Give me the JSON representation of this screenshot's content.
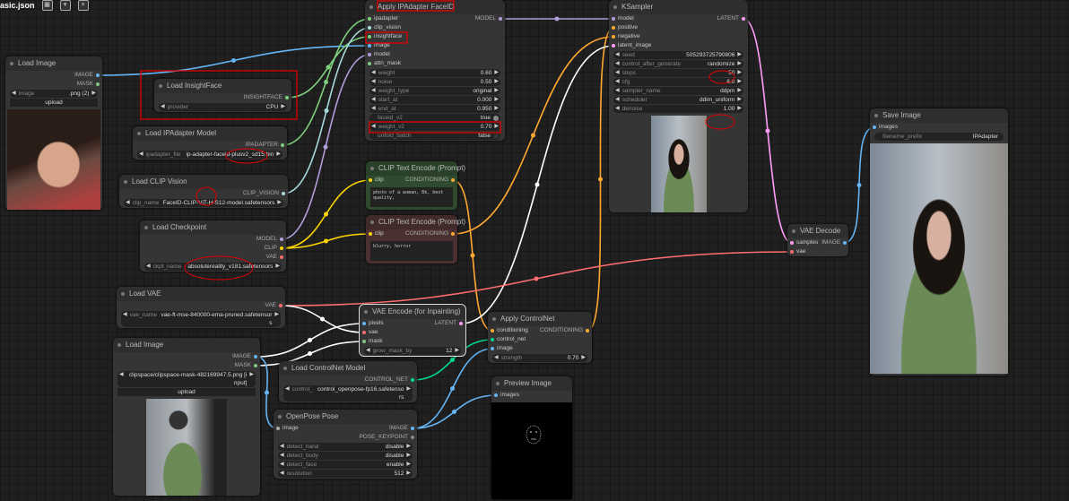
{
  "workflow_tab": {
    "title": "asic.json",
    "icons": [
      "save-icon",
      "chevron-down-icon",
      "close-icon"
    ]
  },
  "colors": {
    "IMAGE": "#64b5f6",
    "MASK": "#81c784",
    "MODEL": "#b39ddb",
    "CLIP": "#ffd500",
    "VAE": "#ff6e6e",
    "CONDITIONING": "#ffa931",
    "LATENT": "#ff9cf9",
    "CLIP_VISION": "#a8dadc",
    "IPADAPTER": "#7ed07e",
    "INSIGHTFACE": "#7ed07e",
    "CONTROL_NET": "#00d78d",
    "POSE_KEYPOINT": "#888888",
    "annotation": "#e00000"
  },
  "nodes": [
    {
      "id": "loadimg1",
      "title": "Load Image",
      "inputs": [],
      "outputs": [
        "IMAGE",
        "MASK"
      ],
      "widgets": [
        {
          "label": "image",
          "value": ".png (2)"
        },
        {
          "type": "button",
          "label": "upload"
        }
      ]
    },
    {
      "id": "insight",
      "title": "Load InsightFace",
      "inputs": [],
      "outputs": [
        "INSIGHTFACE"
      ],
      "widgets": [
        {
          "label": "provider",
          "value": "CPU"
        }
      ]
    },
    {
      "id": "ipamodel",
      "title": "Load IPAdapter Model",
      "inputs": [],
      "outputs": [
        "IPADAPTER"
      ],
      "widgets": [
        {
          "label": "ipadapter_file",
          "value": "ip-adapter-faceid-plusv2_sd15.bin"
        }
      ]
    },
    {
      "id": "clipvision",
      "title": "Load CLIP Vision",
      "inputs": [],
      "outputs": [
        "CLIP_VISION"
      ],
      "widgets": [
        {
          "label": "clip_name",
          "value": "FaceID-CLIP-ViT-H-S12-model.safetensors"
        }
      ]
    },
    {
      "id": "ckpt",
      "title": "Load Checkpoint",
      "inputs": [],
      "outputs": [
        "MODEL",
        "CLIP",
        "VAE"
      ],
      "widgets": [
        {
          "label": "ckpt_name",
          "value": "absolutereality_v181.safetensors"
        }
      ]
    },
    {
      "id": "loadvae",
      "title": "Load VAE",
      "inputs": [],
      "outputs": [
        "VAE"
      ],
      "widgets": [
        {
          "label": "vae_name",
          "value": "vae-ft-mse-840000-ema-pruned.safetensors"
        }
      ]
    },
    {
      "id": "loadimg2",
      "title": "Load Image",
      "inputs": [],
      "outputs": [
        "IMAGE",
        "MASK"
      ],
      "widgets": [
        {
          "label": "",
          "value": "clipspace/clipspace-mask-482169947.5.png [input]"
        },
        {
          "type": "button",
          "label": "upload"
        }
      ]
    },
    {
      "id": "cnmodel",
      "title": "Load ControlNet Model",
      "inputs": [],
      "outputs": [
        "CONTROL_NET"
      ],
      "widgets": [
        {
          "label": "control_",
          "value": "control_openpose-fp16.safetensors"
        }
      ]
    },
    {
      "id": "openpose",
      "title": "OpenPose Pose",
      "inputs": [
        "image"
      ],
      "outputs": [
        "IMAGE",
        "POSE_KEYPOINT"
      ],
      "widgets": [
        {
          "label": "detect_hand",
          "value": "disable"
        },
        {
          "label": "detect_body",
          "value": "disable"
        },
        {
          "label": "detect_face",
          "value": "enable"
        },
        {
          "label": "resolution",
          "value": "512"
        }
      ]
    },
    {
      "id": "ipa",
      "title": "Apply IPAdapter FaceID",
      "inputs": [
        "ipadapter",
        "clip_vision",
        "insightface",
        "image",
        "model",
        "attn_mask"
      ],
      "inputTypes": [
        "IPADAPTER",
        "CLIP_VISION",
        "INSIGHTFACE",
        "IMAGE",
        "MODEL",
        "MASK"
      ],
      "outputs": [
        "MODEL"
      ],
      "widgets": [
        {
          "label": "weight",
          "value": "0.60"
        },
        {
          "label": "noise",
          "value": "0.50"
        },
        {
          "label": "weight_type",
          "value": "original"
        },
        {
          "label": "start_at",
          "value": "0.000"
        },
        {
          "label": "end_at",
          "value": "0.950"
        },
        {
          "type": "toggle",
          "label": "faceid_v2",
          "value": "true",
          "on": true
        },
        {
          "label": "weight_v2",
          "value": "0.70"
        },
        {
          "type": "toggle",
          "label": "unfold_batch",
          "value": "false",
          "on": false
        }
      ]
    },
    {
      "id": "pos",
      "title": "CLIP Text Encode (Prompt)",
      "inputs": [
        "clip"
      ],
      "inputTypes": [
        "CLIP"
      ],
      "outputs": [
        "CONDITIONING"
      ],
      "widgets": [],
      "text": "photo of a woman, 8k, best quality,"
    },
    {
      "id": "neg",
      "title": "CLIP Text Encode (Prompt)",
      "inputs": [
        "clip"
      ],
      "inputTypes": [
        "CLIP"
      ],
      "outputs": [
        "CONDITIONING"
      ],
      "widgets": [],
      "text": "blurry, horror"
    },
    {
      "id": "vaeenc",
      "title": "VAE Encode (for Inpainting)",
      "inputs": [
        "pixels",
        "vae",
        "mask"
      ],
      "inputTypes": [
        "IMAGE",
        "VAE",
        "MASK"
      ],
      "outputs": [
        "LATENT"
      ],
      "widgets": [
        {
          "label": "grow_mask_by",
          "value": "12"
        }
      ]
    },
    {
      "id": "acn",
      "title": "Apply ControlNet",
      "inputs": [
        "conditioning",
        "control_net",
        "image"
      ],
      "inputTypes": [
        "CONDITIONING",
        "CONTROL_NET",
        "IMAGE"
      ],
      "outputs": [
        "CONDITIONING"
      ],
      "widgets": [
        {
          "label": "strength",
          "value": "0.70"
        }
      ]
    },
    {
      "id": "preview",
      "title": "Preview Image",
      "inputs": [
        "images"
      ],
      "inputTypes": [
        "IMAGE"
      ],
      "outputs": [],
      "widgets": []
    },
    {
      "id": "ks",
      "title": "KSampler",
      "inputs": [
        "model",
        "positive",
        "negative",
        "latent_image"
      ],
      "inputTypes": [
        "MODEL",
        "CONDITIONING",
        "CONDITIONING",
        "LATENT"
      ],
      "outputs": [
        "LATENT"
      ],
      "widgets": [
        {
          "label": "seed",
          "value": "505293725790806"
        },
        {
          "label": "control_after_generate",
          "value": "randomize"
        },
        {
          "label": "steps",
          "value": "50"
        },
        {
          "label": "cfg",
          "value": "6.0"
        },
        {
          "label": "sampler_name",
          "value": "ddpm"
        },
        {
          "label": "scheduler",
          "value": "ddim_uniform"
        },
        {
          "label": "denoise",
          "value": "1.00"
        }
      ]
    },
    {
      "id": "vaedec",
      "title": "VAE Decode",
      "inputs": [
        "samples",
        "vae"
      ],
      "inputTypes": [
        "LATENT",
        "VAE"
      ],
      "outputs": [
        "IMAGE"
      ],
      "widgets": []
    },
    {
      "id": "save",
      "title": "Save Image",
      "inputs": [
        "images"
      ],
      "inputTypes": [
        "IMAGE"
      ],
      "outputs": [],
      "widgets": [
        {
          "type": "text",
          "label": "filename_prefix",
          "value": "IPAdapter"
        }
      ]
    }
  ],
  "links": [
    [
      "loadimg1",
      0,
      "ipa",
      3,
      "IMAGE"
    ],
    [
      "insight",
      0,
      "ipa",
      2,
      "INSIGHTFACE"
    ],
    [
      "ipamodel",
      0,
      "ipa",
      0,
      "IPADAPTER"
    ],
    [
      "clipvision",
      0,
      "ipa",
      1,
      "CLIP_VISION"
    ],
    [
      "ckpt",
      0,
      "ipa",
      4,
      "MODEL"
    ],
    [
      "ckpt",
      1,
      "pos",
      0,
      "CLIP"
    ],
    [
      "ckpt",
      1,
      "neg",
      0,
      "CLIP"
    ],
    [
      "ipa",
      0,
      "ks",
      0,
      "MODEL"
    ],
    [
      "pos",
      0,
      "acn",
      0,
      "CONDITIONING"
    ],
    [
      "acn",
      0,
      "ks",
      1,
      "CONDITIONING"
    ],
    [
      "neg",
      0,
      "ks",
      2,
      "CONDITIONING"
    ],
    [
      "vaeenc",
      0,
      "ks",
      3,
      "selected"
    ],
    [
      "ks",
      0,
      "vaedec",
      0,
      "LATENT"
    ],
    [
      "loadvae",
      0,
      "vaedec",
      1,
      "VAE"
    ],
    [
      "loadvae",
      0,
      "vaeenc",
      1,
      "selected"
    ],
    [
      "loadimg2",
      0,
      "vaeenc",
      0,
      "selected"
    ],
    [
      "loadimg2",
      1,
      "vaeenc",
      2,
      "selected"
    ],
    [
      "loadimg2",
      0,
      "openpose",
      0,
      "IMAGE"
    ],
    [
      "cnmodel",
      0,
      "acn",
      1,
      "CONTROL_NET"
    ],
    [
      "openpose",
      0,
      "acn",
      2,
      "IMAGE"
    ],
    [
      "openpose",
      0,
      "preview",
      0,
      "IMAGE"
    ],
    [
      "vaedec",
      0,
      "save",
      0,
      "IMAGE"
    ]
  ]
}
